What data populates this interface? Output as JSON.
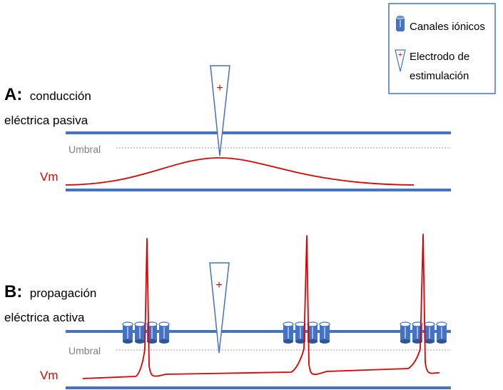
{
  "colors": {
    "membrane": "#4472c4",
    "vm_trace": "#e00000",
    "threshold": "#999999",
    "text": "#000000",
    "label_gray": "#808080"
  },
  "legend": {
    "ion_channels": "Canales iónicos",
    "electrode_line1": "Electrodo de",
    "electrode_line2": "estimulación",
    "ion_channel_icon": "ion-channel-icon",
    "electrode_icon": "electrode-icon"
  },
  "panel_a": {
    "label_letter": "A:",
    "label_line1": "conducción",
    "label_line2": "eléctrica pasiva",
    "threshold": "Umbral",
    "vm": "Vm",
    "electrode_sign": "+"
  },
  "panel_b": {
    "label_letter": "B:",
    "label_line1": "propagación",
    "label_line2": "eléctrica activa",
    "threshold": "Umbral",
    "vm": "Vm",
    "electrode_sign": "+"
  }
}
